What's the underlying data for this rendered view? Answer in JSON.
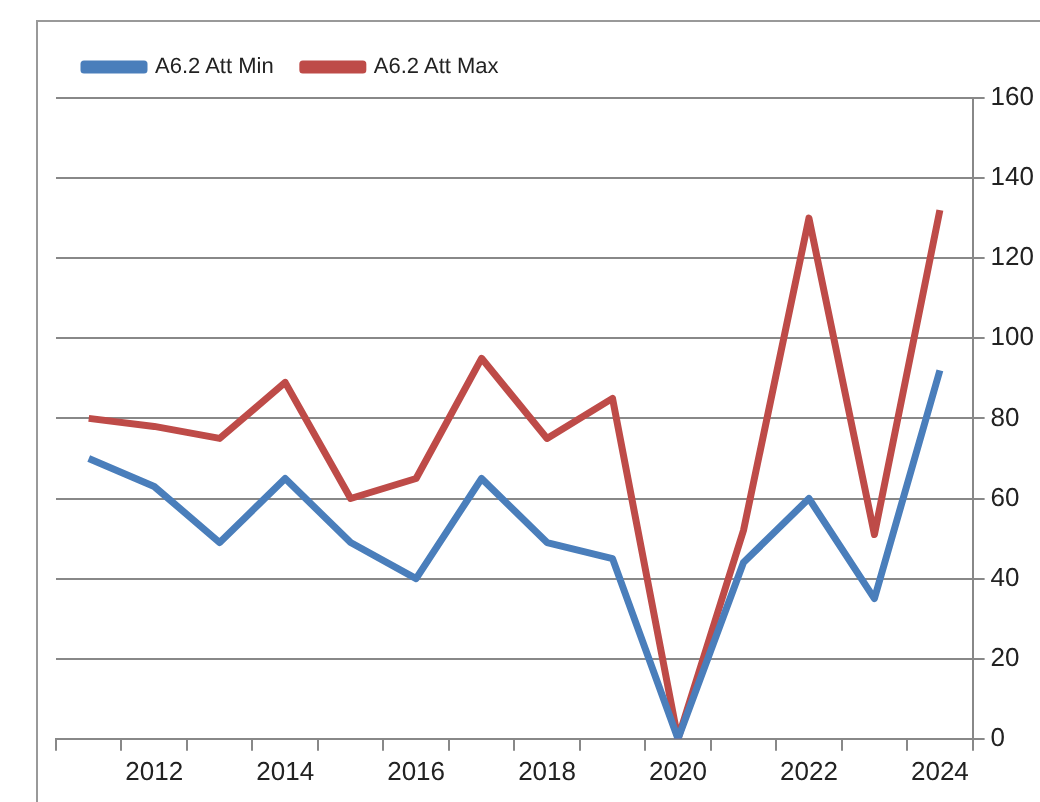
{
  "chart_data": {
    "type": "line",
    "categories": [
      null,
      "2012",
      null,
      "2014",
      null,
      "2016",
      null,
      "2018",
      null,
      "2020",
      null,
      "2022",
      null,
      "2024"
    ],
    "series": [
      {
        "name": "A6.2 Att Min",
        "color": "#4a7ebb",
        "values": [
          70,
          63,
          49,
          65,
          49,
          40,
          65,
          49,
          45,
          0,
          44,
          60,
          35,
          92
        ]
      },
      {
        "name": "A6.2 Att Max",
        "color": "#be4b48",
        "values": [
          80,
          78,
          75,
          89,
          60,
          65,
          95,
          75,
          85,
          0,
          52,
          130,
          51,
          132
        ]
      }
    ],
    "ylim": [
      0,
      160
    ],
    "yticks": [
      0,
      20,
      40,
      60,
      80,
      100,
      120,
      140,
      160
    ],
    "grid": "y",
    "legend": "top left",
    "marker": "none",
    "line_style": "solid"
  }
}
